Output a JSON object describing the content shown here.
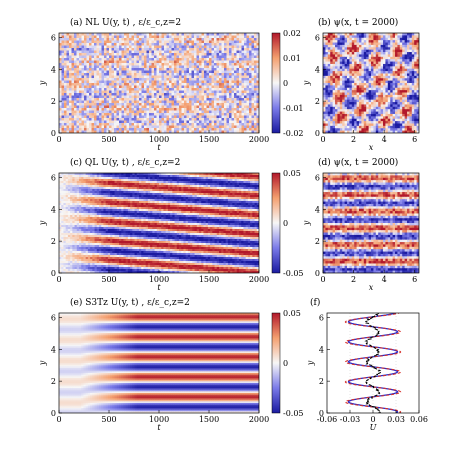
{
  "panels": [
    {
      "id": "a",
      "title": "(a)   NL    U(y, t)  ,  ε/ε_c,z=2",
      "xlabel": "t",
      "ylabel": "y",
      "xticks": [
        "0",
        "500",
        "1000",
        "1500",
        "2000"
      ],
      "yticks": [
        "0",
        "2",
        "4",
        "6"
      ],
      "cbar": [
        "0.02",
        "0.01",
        "0",
        "-0.01",
        "-0.02"
      ]
    },
    {
      "id": "b",
      "title": "(b)  ψ(x, t = 2000)",
      "xlabel": "x",
      "ylabel": "y",
      "xticks": [
        "0",
        "2",
        "4",
        "6"
      ],
      "yticks": [
        "0",
        "2",
        "4",
        "6"
      ]
    },
    {
      "id": "c",
      "title": "(c)   QL    U(y, t)  ,  ε/ε_c,z=2",
      "xlabel": "t",
      "ylabel": "y",
      "xticks": [
        "0",
        "500",
        "1000",
        "1500",
        "2000"
      ],
      "yticks": [
        "0",
        "2",
        "4",
        "6"
      ],
      "cbar": [
        "0.05",
        "0",
        "-0.05"
      ]
    },
    {
      "id": "d",
      "title": "(d)  ψ(x, t = 2000)",
      "xlabel": "x",
      "ylabel": "y",
      "xticks": [
        "0",
        "2",
        "4",
        "6"
      ],
      "yticks": [
        "0",
        "2",
        "4",
        "6"
      ]
    },
    {
      "id": "e",
      "title": "(e)   S3Tz   U(y, t)  ,  ε/ε_c,z=2",
      "xlabel": "t",
      "ylabel": "y",
      "xticks": [
        "0",
        "500",
        "1000",
        "1500",
        "2000"
      ],
      "yticks": [
        "0",
        "2",
        "4",
        "6"
      ],
      "cbar": [
        "0.05",
        "0",
        "-0.05"
      ]
    },
    {
      "id": "f",
      "title": "(f)",
      "xlabel": "U",
      "ylabel": "y",
      "xticks": [
        "-0.06",
        "-0.03",
        "0",
        "0.03",
        "0.06"
      ],
      "yticks": [
        "0",
        "2",
        "4",
        "6"
      ]
    }
  ],
  "colors": {
    "red": "#b2182b",
    "blue": "#2b2bc8",
    "white": "#f7f7f7",
    "orange": "#f4a582",
    "lightblue": "#92a5de"
  }
}
